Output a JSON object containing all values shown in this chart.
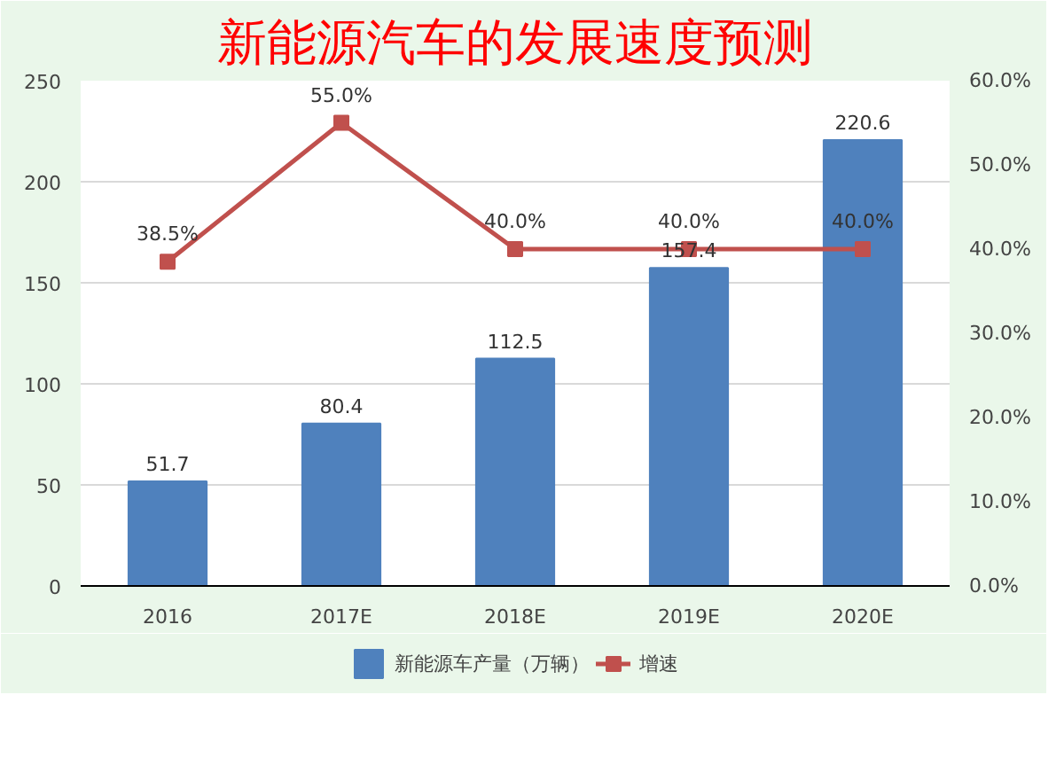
{
  "chart_data": {
    "type": "bar",
    "title": "新能源汽车的发展速度预测",
    "categories": [
      "2016",
      "2017E",
      "2018E",
      "2019E",
      "2020E"
    ],
    "series": [
      {
        "name": "新能源车产量（万辆）",
        "color": "#4f81bd",
        "values": [
          51.7,
          80.4,
          112.5,
          157.4,
          220.6
        ],
        "value_labels": [
          "51.7",
          "80.4",
          "112.5",
          "157.4",
          "220.6"
        ]
      },
      {
        "name": "增速",
        "type": "line",
        "axis": "y2",
        "color": "#c0504d",
        "values": [
          38.5,
          55.0,
          40.0,
          40.0,
          40.0
        ],
        "value_labels": [
          "38.5%",
          "55.0%",
          "40.0%",
          "40.0%",
          "40.0%"
        ]
      }
    ],
    "ylim": [
      0,
      250
    ],
    "yticks": [
      0,
      50,
      100,
      150,
      200,
      250
    ],
    "y2lim": [
      0,
      60
    ],
    "y2ticks": [
      {
        "value": 0,
        "label": "0.0%"
      },
      {
        "value": 10,
        "label": "10.0%"
      },
      {
        "value": 20,
        "label": "20.0%"
      },
      {
        "value": 30,
        "label": "30.0%"
      },
      {
        "value": 40,
        "label": "40.0%"
      },
      {
        "value": 50,
        "label": "50.0%"
      },
      {
        "value": 60,
        "label": "60.0%"
      }
    ],
    "grid": "y",
    "legend": "bottom",
    "marker": "square",
    "line_style": "solid"
  }
}
